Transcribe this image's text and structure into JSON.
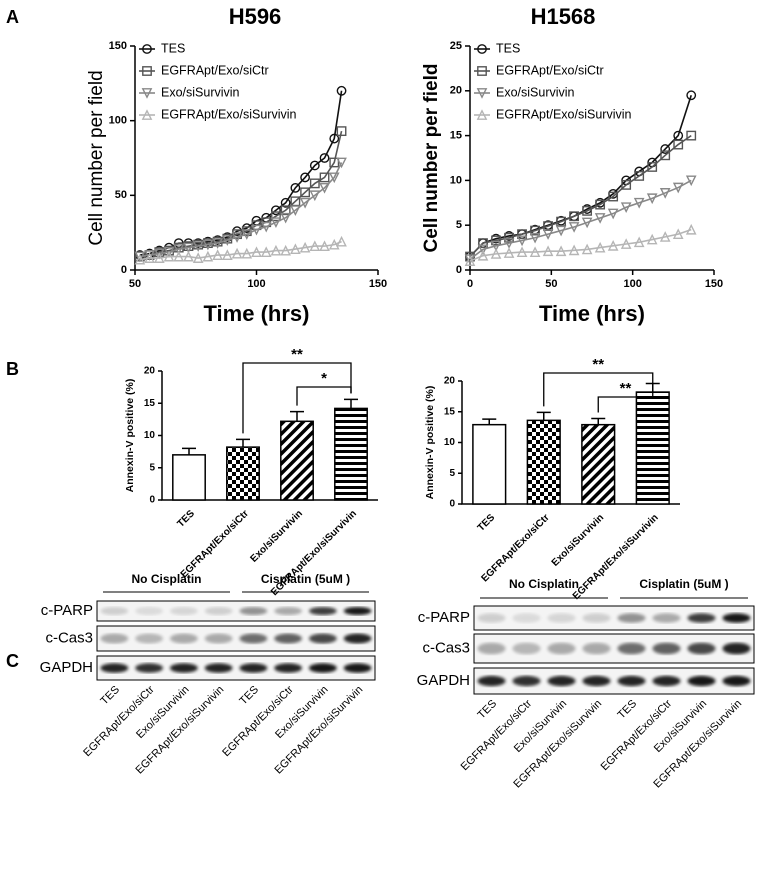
{
  "panel_labels": [
    "A",
    "B",
    "C"
  ],
  "chart_data": [
    {
      "type": "line",
      "title": "H596",
      "xlabel": "Time (hrs)",
      "ylabel": "Cell number per field",
      "x": [
        52,
        56,
        60,
        64,
        68,
        72,
        76,
        80,
        84,
        88,
        92,
        96,
        100,
        104,
        108,
        112,
        116,
        120,
        124,
        128,
        132,
        135
      ],
      "xlim": [
        50,
        150
      ],
      "xticks": [
        50,
        100,
        150
      ],
      "ylim": [
        0,
        150
      ],
      "yticks": [
        0,
        50,
        100,
        150
      ],
      "series": [
        {
          "name": "TES",
          "color": "#111111",
          "marker": "circle",
          "values": [
            10,
            11,
            13,
            15,
            18,
            18,
            18,
            19,
            20,
            22,
            26,
            28,
            33,
            35,
            40,
            45,
            55,
            62,
            70,
            75,
            88,
            120
          ]
        },
        {
          "name": "EGFRApt/Exo/siCtr",
          "color": "#555555",
          "marker": "square",
          "values": [
            9,
            10,
            12,
            13,
            15,
            16,
            17,
            18,
            19,
            21,
            24,
            26,
            30,
            32,
            36,
            40,
            46,
            52,
            58,
            62,
            72,
            93
          ]
        },
        {
          "name": "Exo/siSurvivin",
          "color": "#888888",
          "marker": "down",
          "values": [
            9,
            10,
            11,
            12,
            14,
            15,
            16,
            17,
            18,
            20,
            22,
            24,
            27,
            29,
            32,
            35,
            40,
            45,
            50,
            55,
            62,
            72
          ]
        },
        {
          "name": "EGFRApt/Exo/siSurvivin",
          "color": "#b5b5b5",
          "marker": "up",
          "values": [
            7,
            8,
            8,
            9,
            9,
            9,
            8,
            9,
            10,
            10,
            11,
            11,
            12,
            12,
            13,
            13,
            14,
            15,
            16,
            16,
            17,
            19
          ]
        }
      ]
    },
    {
      "type": "line",
      "title": "H1568",
      "xlabel": "Time (hrs)",
      "ylabel": "Cell number per field",
      "x": [
        0,
        8,
        16,
        24,
        32,
        40,
        48,
        56,
        64,
        72,
        80,
        88,
        96,
        104,
        112,
        120,
        128,
        136
      ],
      "xlim": [
        0,
        150
      ],
      "xticks": [
        0,
        50,
        100,
        150
      ],
      "ylim": [
        0,
        25
      ],
      "yticks": [
        0,
        5,
        10,
        15,
        20,
        25
      ],
      "series": [
        {
          "name": "TES",
          "color": "#111111",
          "marker": "circle",
          "values": [
            1.5,
            3,
            3.5,
            3.8,
            4,
            4.5,
            5,
            5.5,
            6,
            6.8,
            7.5,
            8.5,
            10,
            11,
            12,
            13.5,
            15,
            19.5
          ]
        },
        {
          "name": "EGFRApt/Exo/siCtr",
          "color": "#555555",
          "marker": "square",
          "values": [
            1.5,
            3,
            3.3,
            3.6,
            4,
            4.4,
            4.9,
            5.4,
            6,
            6.6,
            7.3,
            8.2,
            9.5,
            10.5,
            11.5,
            12.8,
            14,
            15
          ]
        },
        {
          "name": "Exo/siSurvivin",
          "color": "#888888",
          "marker": "down",
          "values": [
            1.2,
            2.3,
            2.7,
            3,
            3.3,
            3.6,
            4,
            4.4,
            4.8,
            5.3,
            5.8,
            6.3,
            7,
            7.5,
            8,
            8.6,
            9.2,
            10
          ]
        },
        {
          "name": "EGFRApt/Exo/siSurvivin",
          "color": "#b5b5b5",
          "marker": "up",
          "values": [
            1,
            1.6,
            1.8,
            1.9,
            2,
            2,
            2.1,
            2.1,
            2.2,
            2.3,
            2.5,
            2.7,
            2.9,
            3.1,
            3.4,
            3.7,
            4,
            4.5
          ]
        }
      ]
    },
    {
      "type": "bar",
      "ylabel": "Annexin-V positive (%)",
      "categories": [
        "TES",
        "EGFRApt/Exo/siCtr",
        "Exo/siSurvivin",
        "EGFRApt/Exo/siSurvivin"
      ],
      "patterns": [
        "none",
        "checker",
        "diagonal",
        "horizontal"
      ],
      "values": [
        7,
        8.2,
        12.2,
        14.2
      ],
      "errors": [
        1,
        1.2,
        1.5,
        1.4
      ],
      "ylim": [
        0,
        20
      ],
      "yticks": [
        0,
        5,
        10,
        15,
        20
      ],
      "significance": [
        {
          "from": 1,
          "to": 3,
          "label": "**"
        },
        {
          "from": 2,
          "to": 3,
          "label": "*"
        }
      ]
    },
    {
      "type": "bar",
      "ylabel": "Annexin-V positive (%)",
      "categories": [
        "TES",
        "EGFRApt/Exo/siCtr",
        "Exo/siSurvivin",
        "EGFRApt/Exo/siSurvivin"
      ],
      "patterns": [
        "none",
        "checker",
        "diagonal",
        "horizontal"
      ],
      "values": [
        12.9,
        13.6,
        12.9,
        18.2
      ],
      "errors": [
        0.9,
        1.3,
        1,
        1.4
      ],
      "ylim": [
        0,
        20
      ],
      "yticks": [
        0,
        5,
        10,
        15,
        20
      ],
      "significance": [
        {
          "from": 1,
          "to": 3,
          "label": "**"
        },
        {
          "from": 2,
          "to": 3,
          "label": "**"
        }
      ]
    }
  ],
  "blots": [
    {
      "groups": [
        "No Cisplatin",
        "Cisplatin (5uM )"
      ],
      "rows": [
        "c-PARP",
        "c-Cas3",
        "GAPDH"
      ],
      "lanes": [
        "TES",
        "EGFRApt/Exo/siCtr",
        "Exo/siSurvivin",
        "EGFRApt/Exo/siSurvivin",
        "TES",
        "EGFRApt/Exo/siCtr",
        "Exo/siSurvivin",
        "EGFRApt/Exo/siSurvivin"
      ]
    },
    {
      "groups": [
        "No Cisplatin",
        "Cisplatin (5uM )"
      ],
      "rows": [
        "c-PARP",
        "c-Cas3",
        "GAPDH"
      ],
      "lanes": [
        "TES",
        "EGFRApt/Exo/siCtr",
        "Exo/siSurvivin",
        "EGFRApt/Exo/siSurvivin",
        "TES",
        "EGFRApt/Exo/siCtr",
        "Exo/siSurvivin",
        "EGFRApt/Exo/siSurvivin"
      ]
    }
  ]
}
